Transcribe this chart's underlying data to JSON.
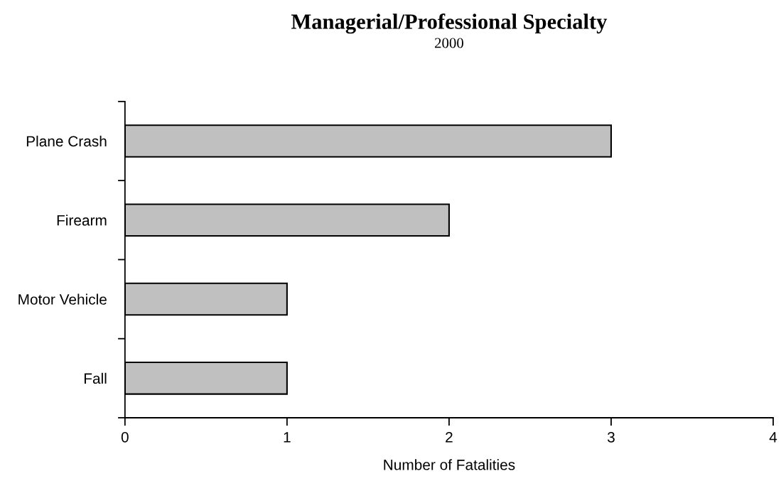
{
  "chart_data": {
    "type": "bar",
    "orientation": "horizontal",
    "title": "Managerial/Professional Specialty",
    "subtitle": "2000",
    "xlabel": "Number of Fatalities",
    "categories": [
      "Plane Crash",
      "Firearm",
      "Motor Vehicle",
      "Fall"
    ],
    "values": [
      3,
      2,
      1,
      1
    ],
    "color": "#c0c0c0",
    "xlim": [
      0,
      4
    ],
    "xticks": [
      0,
      1,
      2,
      3,
      4
    ],
    "grid": false,
    "legend": false
  }
}
